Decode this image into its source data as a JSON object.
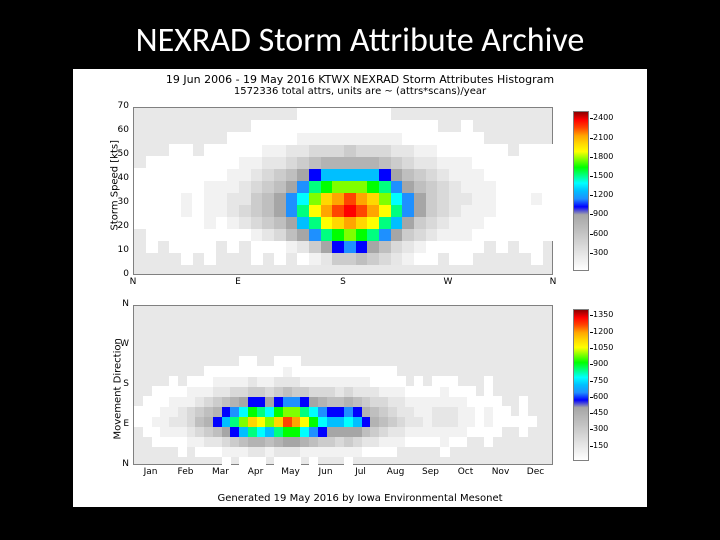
{
  "slide": {
    "title": "NEXRAD Storm Attribute Archive",
    "background": "#000000",
    "title_color": "#ffffff",
    "title_fontsize": 34
  },
  "figure": {
    "title": "19 Jun 2006 - 19 May 2016 KTWX NEXRAD Storm Attributes Histogram",
    "subtitle": "1572336 total attrs, units are ~ (attrs*scans)/year",
    "footer": "Generated 19 May 2016 by Iowa Environmental Mesonet",
    "background": "#ffffff",
    "plot_bg": "#e8e8e8",
    "border_color": "#808080",
    "title_fontsize": 11,
    "footer_fontsize": 10
  },
  "colormap": {
    "stops": [
      "#ffffff",
      "#f2f2f2",
      "#e6e6e6",
      "#d9d9d9",
      "#cccccc",
      "#bfbfbf",
      "#b3b3b3",
      "#a6a6a6",
      "#0000ff",
      "#1e90ff",
      "#00bfff",
      "#00ffff",
      "#00ff7f",
      "#00ff00",
      "#7fff00",
      "#ffff00",
      "#ffd700",
      "#ffa500",
      "#ff4500",
      "#ff0000",
      "#8b0000"
    ]
  },
  "top_chart": {
    "type": "heatmap",
    "ylabel": "Storm Speed [kts]",
    "xlabel_ticks": [
      "N",
      "E",
      "S",
      "W",
      "N"
    ],
    "ylim": [
      0,
      70
    ],
    "yticks": [
      0,
      10,
      20,
      30,
      40,
      50,
      60,
      70
    ],
    "xbins": 36,
    "ybins": 14,
    "direction_deg": [
      0,
      360
    ],
    "colorbar_ticks": [
      300,
      600,
      900,
      1200,
      1500,
      1800,
      2100,
      2400
    ],
    "vmax": 2500,
    "data_rows": [
      [
        0,
        0,
        0,
        0,
        0,
        0,
        0,
        0,
        0,
        0,
        0,
        0,
        0,
        0,
        0,
        0,
        0,
        0,
        0,
        0,
        0,
        0,
        0,
        0,
        0,
        0,
        0,
        0,
        0,
        0,
        0,
        0,
        0,
        0,
        0,
        0
      ],
      [
        0,
        0,
        0,
        0,
        20,
        0,
        25,
        0,
        0,
        0,
        30,
        0,
        40,
        0,
        50,
        150,
        260,
        500,
        620,
        700,
        600,
        400,
        330,
        220,
        100,
        60,
        0,
        30,
        80,
        0,
        0,
        0,
        0,
        0,
        40,
        0
      ],
      [
        0,
        40,
        0,
        30,
        50,
        30,
        40,
        0,
        40,
        0,
        60,
        80,
        120,
        180,
        280,
        600,
        900,
        1100,
        1200,
        1100,
        900,
        700,
        450,
        300,
        200,
        120,
        80,
        60,
        100,
        40,
        0,
        30,
        0,
        20,
        60,
        0
      ],
      [
        0,
        60,
        40,
        70,
        80,
        60,
        80,
        60,
        100,
        120,
        200,
        320,
        450,
        650,
        900,
        1200,
        1500,
        1700,
        1800,
        1700,
        1500,
        1200,
        900,
        600,
        400,
        260,
        180,
        140,
        160,
        100,
        60,
        40,
        30,
        40,
        80,
        40
      ],
      [
        40,
        80,
        60,
        90,
        110,
        90,
        130,
        120,
        180,
        260,
        380,
        520,
        700,
        950,
        1250,
        1600,
        1900,
        2100,
        2200,
        2100,
        1900,
        1600,
        1250,
        900,
        600,
        400,
        280,
        200,
        200,
        140,
        100,
        70,
        50,
        60,
        100,
        60
      ],
      [
        60,
        100,
        80,
        110,
        140,
        120,
        170,
        180,
        260,
        380,
        520,
        700,
        900,
        1200,
        1550,
        1900,
        2200,
        2350,
        2400,
        2350,
        2200,
        1900,
        1550,
        1200,
        900,
        600,
        420,
        300,
        240,
        170,
        130,
        100,
        80,
        80,
        120,
        80
      ],
      [
        50,
        90,
        70,
        100,
        130,
        110,
        160,
        170,
        250,
        370,
        510,
        690,
        880,
        1150,
        1480,
        1800,
        2050,
        2200,
        2250,
        2200,
        2050,
        1800,
        1480,
        1150,
        880,
        620,
        440,
        320,
        260,
        190,
        140,
        110,
        90,
        90,
        130,
        90
      ],
      [
        40,
        70,
        60,
        80,
        100,
        90,
        130,
        140,
        210,
        310,
        430,
        580,
        740,
        960,
        1230,
        1500,
        1700,
        1830,
        1870,
        1830,
        1700,
        1500,
        1230,
        960,
        740,
        540,
        390,
        290,
        240,
        170,
        130,
        100,
        80,
        80,
        120,
        80
      ],
      [
        30,
        50,
        40,
        60,
        70,
        60,
        90,
        100,
        150,
        220,
        310,
        420,
        540,
        700,
        900,
        1100,
        1250,
        1340,
        1370,
        1340,
        1250,
        1100,
        900,
        700,
        540,
        400,
        290,
        220,
        190,
        140,
        110,
        80,
        60,
        60,
        90,
        60
      ],
      [
        0,
        30,
        20,
        40,
        40,
        30,
        50,
        60,
        90,
        130,
        190,
        260,
        340,
        440,
        570,
        700,
        800,
        850,
        870,
        850,
        800,
        700,
        570,
        440,
        340,
        250,
        180,
        140,
        130,
        100,
        80,
        50,
        40,
        40,
        60,
        40
      ],
      [
        0,
        0,
        0,
        20,
        20,
        0,
        25,
        30,
        45,
        70,
        100,
        140,
        190,
        250,
        320,
        400,
        460,
        490,
        500,
        490,
        460,
        400,
        320,
        250,
        190,
        140,
        100,
        80,
        80,
        60,
        40,
        20,
        0,
        20,
        30,
        20
      ],
      [
        0,
        0,
        0,
        0,
        0,
        0,
        0,
        0,
        20,
        30,
        45,
        65,
        90,
        120,
        155,
        195,
        225,
        240,
        245,
        240,
        225,
        195,
        155,
        120,
        90,
        65,
        45,
        35,
        40,
        30,
        0,
        0,
        0,
        0,
        0,
        0
      ],
      [
        0,
        0,
        0,
        0,
        0,
        0,
        0,
        0,
        0,
        0,
        20,
        30,
        40,
        55,
        70,
        90,
        105,
        115,
        120,
        115,
        105,
        90,
        70,
        55,
        40,
        30,
        0,
        0,
        20,
        0,
        0,
        0,
        0,
        0,
        0,
        0
      ],
      [
        0,
        0,
        0,
        0,
        0,
        0,
        0,
        0,
        0,
        0,
        0,
        0,
        0,
        0,
        20,
        30,
        35,
        40,
        40,
        40,
        35,
        30,
        0,
        0,
        0,
        0,
        0,
        0,
        0,
        0,
        0,
        0,
        0,
        0,
        0,
        0
      ]
    ]
  },
  "bottom_chart": {
    "type": "heatmap",
    "ylabel": "Movement Direction",
    "xlabel_ticks": [
      "Jan",
      "Feb",
      "Mar",
      "Apr",
      "May",
      "Jun",
      "Jul",
      "Aug",
      "Sep",
      "Oct",
      "Nov",
      "Dec"
    ],
    "ylim_ticks": [
      "N",
      "E",
      "S",
      "W",
      "N"
    ],
    "xbins": 48,
    "ybins": 16,
    "colorbar_ticks": [
      150,
      300,
      450,
      600,
      750,
      900,
      1050,
      1200,
      1350
    ],
    "vmax": 1400,
    "data_rows": [
      [
        0,
        0,
        0,
        0,
        0,
        0,
        0,
        0,
        0,
        0,
        20,
        0,
        30,
        40,
        30,
        0,
        40,
        50,
        40,
        0,
        30,
        0,
        0,
        0,
        30,
        0,
        0,
        0,
        0,
        0,
        0,
        0,
        0,
        0,
        0,
        0,
        0,
        0,
        0,
        0,
        0,
        0,
        0,
        0,
        0,
        0,
        0,
        0
      ],
      [
        0,
        0,
        0,
        0,
        0,
        20,
        0,
        30,
        40,
        60,
        80,
        100,
        120,
        150,
        140,
        120,
        160,
        180,
        170,
        130,
        110,
        90,
        80,
        70,
        100,
        80,
        60,
        50,
        40,
        30,
        0,
        0,
        0,
        0,
        0,
        20,
        0,
        0,
        0,
        0,
        0,
        0,
        0,
        0,
        0,
        0,
        0,
        0
      ],
      [
        0,
        0,
        20,
        30,
        40,
        60,
        80,
        110,
        150,
        200,
        260,
        330,
        400,
        470,
        440,
        390,
        480,
        550,
        520,
        430,
        370,
        310,
        280,
        250,
        300,
        260,
        200,
        160,
        130,
        100,
        70,
        50,
        40,
        30,
        50,
        70,
        50,
        30,
        0,
        0,
        20,
        0,
        0,
        0,
        0,
        0,
        0,
        0
      ],
      [
        0,
        30,
        50,
        70,
        90,
        130,
        170,
        230,
        300,
        390,
        490,
        600,
        720,
        840,
        790,
        710,
        850,
        960,
        910,
        770,
        680,
        580,
        530,
        490,
        550,
        490,
        390,
        320,
        260,
        200,
        150,
        110,
        90,
        70,
        100,
        130,
        100,
        70,
        40,
        30,
        50,
        30,
        0,
        0,
        20,
        0,
        0,
        0
      ],
      [
        30,
        50,
        80,
        110,
        140,
        200,
        260,
        350,
        450,
        570,
        710,
        850,
        1000,
        1150,
        1090,
        990,
        1160,
        1290,
        1230,
        1060,
        940,
        820,
        760,
        710,
        780,
        700,
        570,
        470,
        390,
        310,
        240,
        180,
        150,
        120,
        160,
        200,
        160,
        120,
        80,
        60,
        90,
        60,
        30,
        20,
        40,
        20,
        0,
        0
      ],
      [
        20,
        40,
        60,
        90,
        110,
        160,
        210,
        280,
        360,
        460,
        570,
        690,
        810,
        930,
        880,
        800,
        940,
        1040,
        1000,
        860,
        770,
        670,
        620,
        580,
        640,
        580,
        470,
        390,
        320,
        260,
        200,
        150,
        130,
        100,
        140,
        170,
        140,
        100,
        70,
        50,
        80,
        50,
        20,
        0,
        30,
        0,
        0,
        0
      ],
      [
        0,
        20,
        40,
        60,
        70,
        100,
        130,
        180,
        230,
        300,
        370,
        450,
        530,
        610,
        580,
        530,
        620,
        690,
        660,
        570,
        510,
        440,
        410,
        390,
        430,
        390,
        320,
        270,
        220,
        180,
        140,
        100,
        90,
        70,
        100,
        120,
        100,
        70,
        50,
        30,
        60,
        30,
        0,
        0,
        20,
        0,
        0,
        0
      ],
      [
        0,
        0,
        20,
        30,
        40,
        50,
        70,
        90,
        120,
        150,
        190,
        230,
        270,
        310,
        290,
        270,
        320,
        350,
        340,
        290,
        260,
        230,
        210,
        200,
        220,
        200,
        170,
        140,
        120,
        100,
        80,
        50,
        50,
        40,
        60,
        70,
        60,
        40,
        30,
        0,
        40,
        0,
        0,
        0,
        0,
        0,
        0,
        0
      ],
      [
        0,
        0,
        0,
        0,
        20,
        0,
        30,
        40,
        50,
        70,
        80,
        100,
        120,
        140,
        130,
        120,
        140,
        160,
        150,
        130,
        120,
        100,
        100,
        90,
        100,
        90,
        80,
        60,
        50,
        50,
        40,
        0,
        20,
        0,
        30,
        30,
        30,
        0,
        0,
        0,
        20,
        0,
        0,
        0,
        0,
        0,
        0,
        0
      ],
      [
        0,
        0,
        0,
        0,
        0,
        0,
        0,
        0,
        20,
        30,
        30,
        40,
        50,
        60,
        50,
        50,
        60,
        70,
        60,
        50,
        50,
        40,
        40,
        40,
        40,
        40,
        30,
        30,
        20,
        20,
        0,
        0,
        0,
        0,
        0,
        0,
        0,
        0,
        0,
        0,
        0,
        0,
        0,
        0,
        0,
        0,
        0,
        0
      ],
      [
        0,
        0,
        0,
        0,
        0,
        0,
        0,
        0,
        0,
        0,
        0,
        0,
        20,
        20,
        0,
        0,
        20,
        30,
        20,
        0,
        0,
        0,
        0,
        0,
        0,
        0,
        0,
        0,
        0,
        0,
        0,
        0,
        0,
        0,
        0,
        0,
        0,
        0,
        0,
        0,
        0,
        0,
        0,
        0,
        0,
        0,
        0,
        0
      ],
      [
        0,
        0,
        0,
        0,
        0,
        0,
        0,
        0,
        0,
        0,
        0,
        0,
        0,
        0,
        0,
        0,
        0,
        0,
        0,
        0,
        0,
        0,
        0,
        0,
        0,
        0,
        0,
        0,
        0,
        0,
        0,
        0,
        0,
        0,
        0,
        0,
        0,
        0,
        0,
        0,
        0,
        0,
        0,
        0,
        0,
        0,
        0,
        0
      ],
      [
        0,
        0,
        0,
        0,
        0,
        0,
        0,
        0,
        0,
        0,
        0,
        0,
        0,
        0,
        0,
        0,
        0,
        0,
        0,
        0,
        0,
        0,
        0,
        0,
        0,
        0,
        0,
        0,
        0,
        0,
        0,
        0,
        0,
        0,
        0,
        0,
        0,
        0,
        0,
        0,
        0,
        0,
        0,
        0,
        0,
        0,
        0,
        0
      ],
      [
        0,
        0,
        0,
        0,
        0,
        0,
        0,
        0,
        0,
        0,
        0,
        0,
        0,
        0,
        0,
        0,
        0,
        0,
        0,
        0,
        0,
        0,
        0,
        0,
        0,
        0,
        0,
        0,
        0,
        0,
        0,
        0,
        0,
        0,
        0,
        0,
        0,
        0,
        0,
        0,
        0,
        0,
        0,
        0,
        0,
        0,
        0,
        0
      ],
      [
        0,
        0,
        0,
        0,
        0,
        0,
        0,
        0,
        0,
        0,
        0,
        0,
        0,
        0,
        0,
        0,
        0,
        0,
        0,
        0,
        0,
        0,
        0,
        0,
        0,
        0,
        0,
        0,
        0,
        0,
        0,
        0,
        0,
        0,
        0,
        0,
        0,
        0,
        0,
        0,
        0,
        0,
        0,
        0,
        0,
        0,
        0,
        0
      ],
      [
        0,
        0,
        0,
        0,
        0,
        0,
        0,
        0,
        0,
        0,
        0,
        0,
        0,
        0,
        0,
        0,
        0,
        0,
        0,
        0,
        0,
        0,
        0,
        0,
        0,
        0,
        0,
        0,
        0,
        0,
        0,
        0,
        0,
        0,
        0,
        0,
        0,
        0,
        0,
        0,
        0,
        0,
        0,
        0,
        0,
        0,
        0,
        0
      ]
    ]
  }
}
